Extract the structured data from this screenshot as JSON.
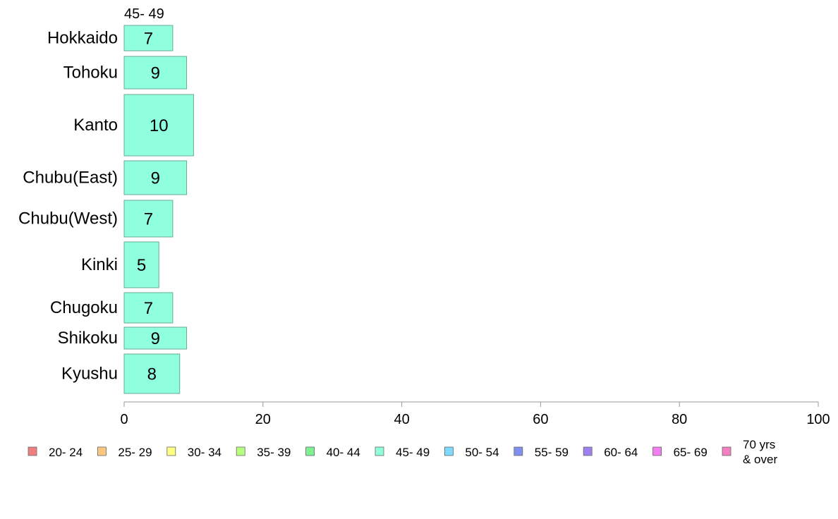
{
  "chart_data": {
    "type": "bar",
    "orientation": "horizontal",
    "stacked": true,
    "series_header": "45- 49",
    "categories": [
      "Hokkaido",
      "Tohoku",
      "Kanto",
      "Chubu(East)",
      "Chubu(West)",
      "Kinki",
      "Chugoku",
      "Shikoku",
      "Kyushu"
    ],
    "series": [
      {
        "name": "45- 49",
        "color": "#8fffdc",
        "values": [
          7,
          9,
          10,
          9,
          7,
          5,
          7,
          9,
          8
        ]
      }
    ],
    "xlim": [
      0,
      100
    ],
    "x_ticks": [
      0,
      20,
      40,
      60,
      80,
      100
    ],
    "grid": false,
    "legend": {
      "placement": "bottom",
      "items": [
        {
          "label": "20- 24",
          "color": "#f08080"
        },
        {
          "label": "25- 29",
          "color": "#ffc880"
        },
        {
          "label": "30- 34",
          "color": "#ffff80"
        },
        {
          "label": "35- 39",
          "color": "#b8ff80"
        },
        {
          "label": "40- 44",
          "color": "#80f090"
        },
        {
          "label": "45- 49",
          "color": "#8fffdc"
        },
        {
          "label": "50- 54",
          "color": "#80d8ff"
        },
        {
          "label": "55- 59",
          "color": "#8090f0"
        },
        {
          "label": "60- 64",
          "color": "#a080f0"
        },
        {
          "label": "65- 69",
          "color": "#f080f0"
        },
        {
          "label": "70 yrs\n& over",
          "color": "#f080c0"
        }
      ]
    }
  }
}
